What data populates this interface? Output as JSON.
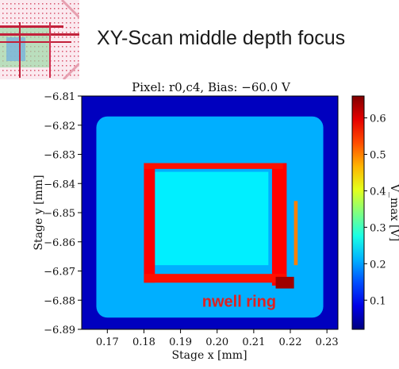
{
  "slide": {
    "title": "XY-Scan middle depth focus"
  },
  "chart_data": {
    "type": "heatmap",
    "title": "Pixel:  r0,c4, Bias:  −60.0 V",
    "xlabel": "Stage x [mm]",
    "ylabel": "Stage y [mm]",
    "colorbar_label": "V_max [V]",
    "xlim": [
      0.163,
      0.233
    ],
    "ylim": [
      -6.89,
      -6.81
    ],
    "x_ticks": [
      0.17,
      0.18,
      0.19,
      0.2,
      0.21,
      0.22,
      0.23
    ],
    "x_tick_labels": [
      "0.17",
      "0.18",
      "0.19",
      "0.20",
      "0.21",
      "0.22",
      "0.23"
    ],
    "y_ticks": [
      -6.81,
      -6.82,
      -6.83,
      -6.84,
      -6.85,
      -6.86,
      -6.87,
      -6.88,
      -6.89
    ],
    "y_tick_labels": [
      "−6.81",
      "−6.82",
      "−6.83",
      "−6.84",
      "−6.85",
      "−6.86",
      "−6.87",
      "−6.88",
      "−6.89"
    ],
    "colorbar_ticks": [
      0.1,
      0.2,
      0.3,
      0.4,
      0.5,
      0.6
    ],
    "colorbar_tick_labels": [
      "0.1",
      "0.2",
      "0.3",
      "0.4",
      "0.5",
      "0.6"
    ],
    "colorbar_range": [
      0.02,
      0.66
    ],
    "colormap": "jet",
    "grid": false,
    "regions": [
      {
        "name": "background",
        "x": [
          0.163,
          0.233
        ],
        "y": [
          -6.89,
          -6.81
        ],
        "value": 0.06
      },
      {
        "name": "pixel-area",
        "x": [
          0.167,
          0.229
        ],
        "y": [
          -6.886,
          -6.817
        ],
        "value": 0.21
      },
      {
        "name": "inner-area",
        "x": [
          0.183,
          0.214
        ],
        "y": [
          -6.868,
          -6.836
        ],
        "value": 0.25
      },
      {
        "name": "ring-left",
        "x": [
          0.18,
          0.183
        ],
        "y": [
          -6.874,
          -6.833
        ],
        "value": 0.58
      },
      {
        "name": "ring-right",
        "x": [
          0.215,
          0.219
        ],
        "y": [
          -6.875,
          -6.833
        ],
        "value": 0.58
      },
      {
        "name": "ring-top",
        "x": [
          0.18,
          0.218
        ],
        "y": [
          -6.835,
          -6.833
        ],
        "value": 0.57
      },
      {
        "name": "ring-bottom",
        "x": [
          0.18,
          0.219
        ],
        "y": [
          -6.874,
          -6.871
        ],
        "value": 0.57
      },
      {
        "name": "corner-hotspot",
        "x": [
          0.216,
          0.221
        ],
        "y": [
          -6.876,
          -6.872
        ],
        "value": 0.64
      },
      {
        "name": "ring-right-outer",
        "x": [
          0.221,
          0.222
        ],
        "y": [
          -6.868,
          -6.846
        ],
        "value": 0.5
      }
    ],
    "annotations": [
      {
        "text": "nwell ring",
        "x": 0.206,
        "y": -6.88,
        "color": "#e02020"
      }
    ]
  }
}
